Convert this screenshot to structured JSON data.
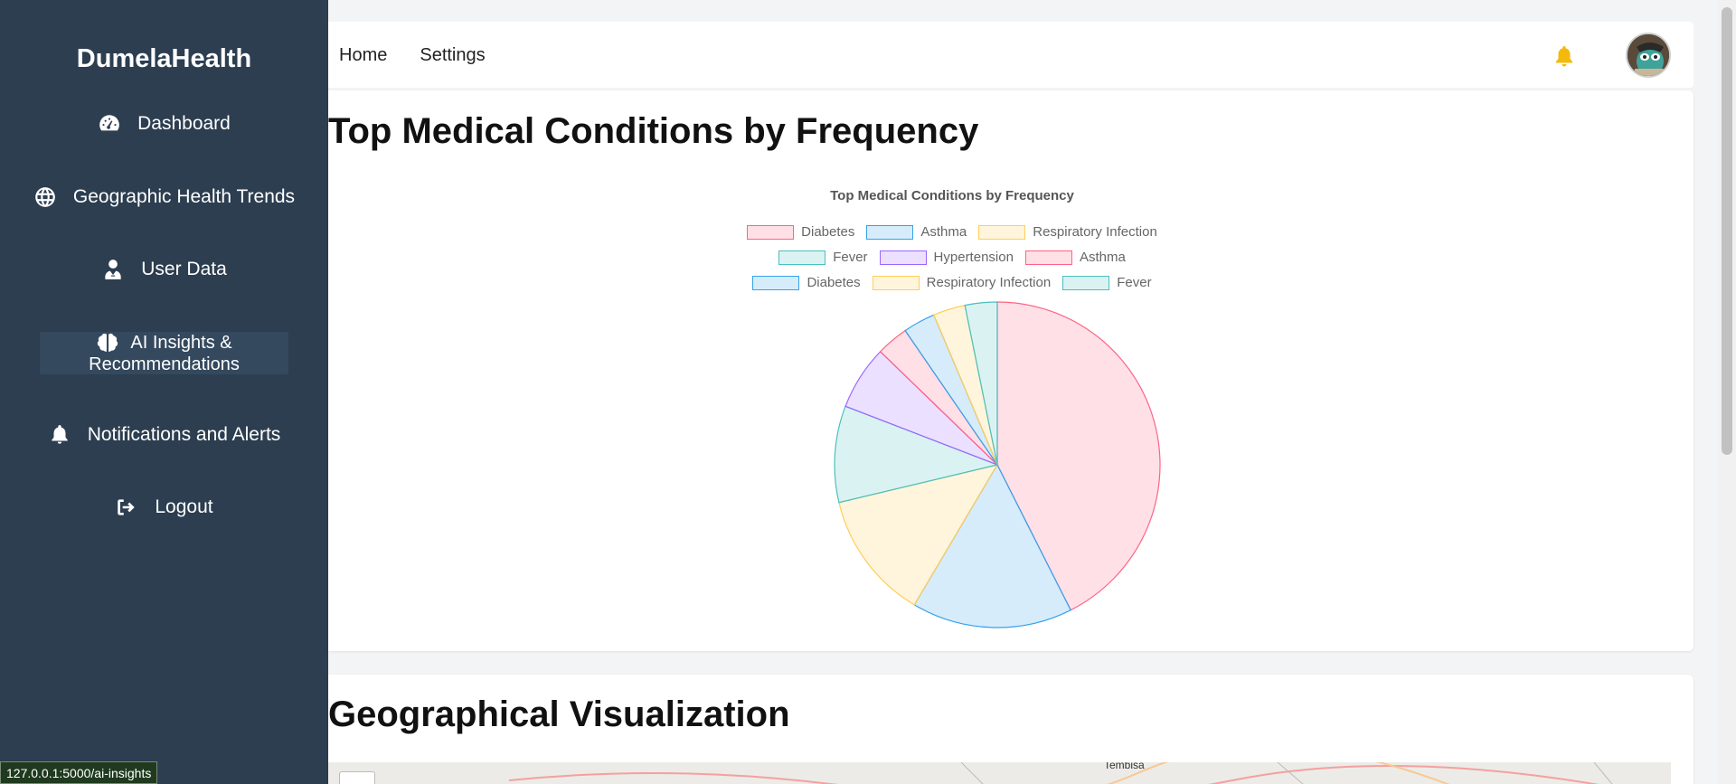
{
  "sidebar": {
    "brand": "DumelaHealth",
    "items": [
      {
        "label": "Dashboard",
        "icon": "gauge-icon"
      },
      {
        "label": "Geographic Health Trends",
        "icon": "globe-icon"
      },
      {
        "label": "User Data",
        "icon": "user-doctor-icon"
      },
      {
        "label_line1": "AI Insights &",
        "label_line2": "Recommendations",
        "icon": "brain-icon",
        "active": true
      },
      {
        "label": "Notifications and Alerts",
        "icon": "bell-icon"
      },
      {
        "label": "Logout",
        "icon": "logout-icon"
      }
    ]
  },
  "header": {
    "nav": [
      "Home",
      "Settings"
    ],
    "bell_color": "#f5b90b"
  },
  "section1": {
    "title": "Top Medical Conditions by Frequency"
  },
  "chart_data": {
    "type": "pie",
    "title": "Top Medical Conditions by Frequency",
    "legend_position": "top",
    "slices": [
      {
        "label": "Diabetes",
        "value": 40,
        "color": "#ff6384"
      },
      {
        "label": "Asthma",
        "value": 15,
        "color": "#36a2eb"
      },
      {
        "label": "Respiratory Infection",
        "value": 12,
        "color": "#ffce56"
      },
      {
        "label": "Fever",
        "value": 9,
        "color": "#4bc0c0"
      },
      {
        "label": "Hypertension",
        "value": 6,
        "color": "#9966ff"
      },
      {
        "label": "Asthma",
        "value": 3,
        "color": "#ff6384"
      },
      {
        "label": "Diabetes",
        "value": 3,
        "color": "#36a2eb"
      },
      {
        "label": "Respiratory Infection",
        "value": 3,
        "color": "#ffce56"
      },
      {
        "label": "Fever",
        "value": 3,
        "color": "#4bc0c0"
      }
    ]
  },
  "section2": {
    "title": "Geographical Visualization",
    "map_place": "Tembisa"
  },
  "statusbar": {
    "url": "127.0.0.1:5000/ai-insights"
  }
}
